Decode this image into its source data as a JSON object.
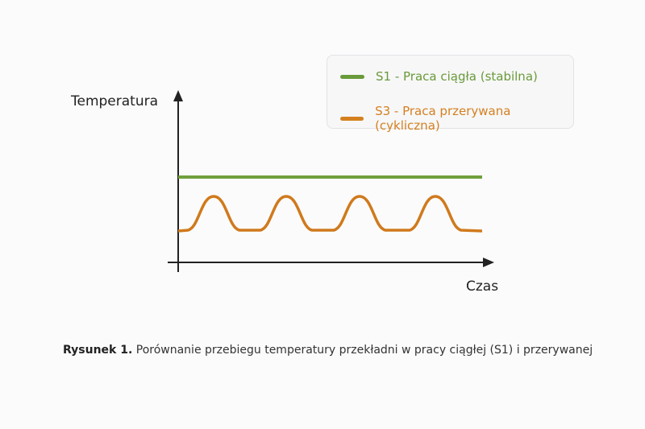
{
  "axes": {
    "y_label": "Temperatura",
    "x_label": "Czas"
  },
  "legend": [
    {
      "label": "S1 - Praca ciągła (stabilna)",
      "color": "#6a9a3a"
    },
    {
      "label": "S3 - Praca przerywana (cykliczna)",
      "color": "#d4801f"
    }
  ],
  "series": {
    "s1": {
      "shape": "constant",
      "color": "#6fa03c"
    },
    "s3": {
      "shape": "periodic",
      "peaks": 4,
      "color": "#d07a1c"
    }
  },
  "caption": {
    "label": "Rysunek 1.",
    "text": "Porównanie przebiegu temperatury przekładni w pracy ciągłej (S1) i przerywanej"
  }
}
